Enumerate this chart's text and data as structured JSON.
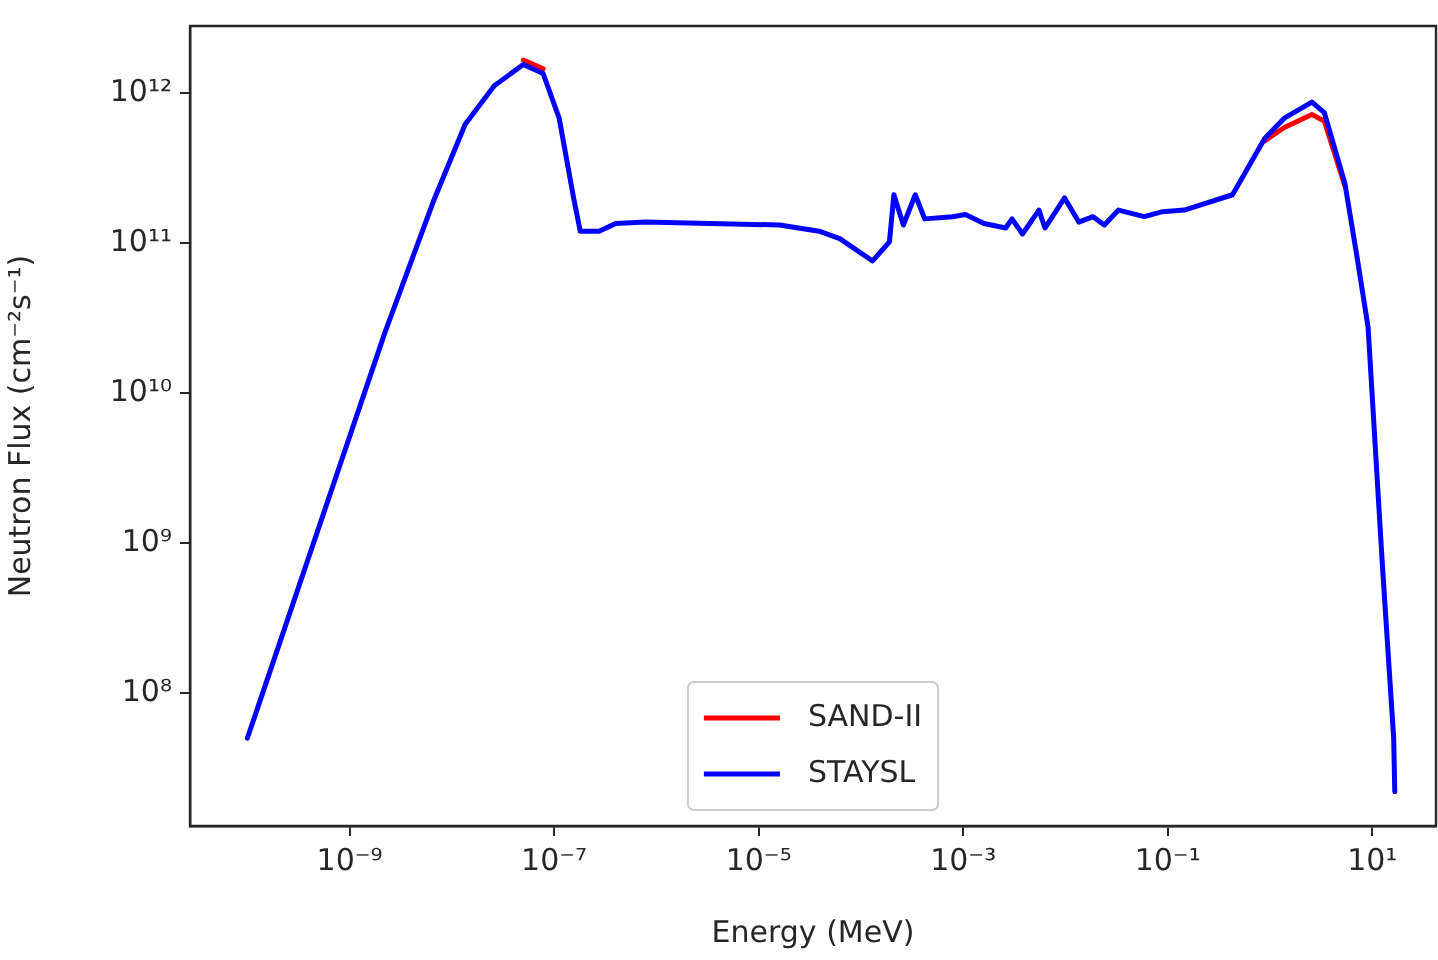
{
  "chart_data": {
    "type": "line",
    "xlabel": "Energy (MeV)",
    "ylabel": "Neutron Flux (cm⁻²s⁻¹)",
    "log": "xy",
    "grid": false,
    "legend": "bottom",
    "marker": "none",
    "line_style": "solid",
    "xlim": [
      2.75e-11,
      42
    ],
    "ylim": [
      13000000.0,
      2800000000000.0
    ],
    "xticks": [
      {
        "value": 1e-09,
        "label": "10⁻⁹"
      },
      {
        "value": 1e-07,
        "label": "10⁻⁷"
      },
      {
        "value": 1e-05,
        "label": "10⁻⁵"
      },
      {
        "value": 0.001,
        "label": "10⁻³"
      },
      {
        "value": 0.1,
        "label": "10⁻¹"
      },
      {
        "value": 10,
        "label": "10¹"
      }
    ],
    "yticks": [
      {
        "value": 100000000.0,
        "label": "10⁸"
      },
      {
        "value": 1000000000.0,
        "label": "10⁹"
      },
      {
        "value": 10000000000.0,
        "label": "10¹⁰"
      },
      {
        "value": 100000000000.0,
        "label": "10¹¹"
      },
      {
        "value": 1000000000000.0,
        "label": "10¹²"
      }
    ],
    "x": [
      1e-10,
      2.2e-09,
      6.6e-09,
      1.35e-08,
      2.6e-08,
      5e-08,
      7.8e-08,
      1.12e-07,
      1.55e-07,
      1.8e-07,
      2.75e-07,
      4e-07,
      7.8e-07,
      1.6e-05,
      3.9e-05,
      6.2e-05,
      0.00013,
      0.00019,
      0.00021,
      0.00026,
      0.00034,
      0.00042,
      0.00079,
      0.00105,
      0.0016,
      0.0026,
      0.003,
      0.0038,
      0.0055,
      0.0063,
      0.0098,
      0.0135,
      0.0186,
      0.024,
      0.033,
      0.059,
      0.089,
      0.145,
      0.43,
      0.89,
      1.38,
      2.57,
      3.4,
      5.4,
      7.2,
      9.1,
      12.6,
      16.2,
      16.6
    ],
    "series": [
      {
        "name": "SAND-II",
        "color": "#ff0000",
        "values": [
          null,
          null,
          null,
          null,
          null,
          1660000000000.0,
          1450000000000.0,
          null,
          null,
          null,
          null,
          null,
          null,
          null,
          null,
          null,
          null,
          null,
          null,
          null,
          null,
          null,
          null,
          null,
          null,
          null,
          null,
          null,
          null,
          null,
          null,
          null,
          null,
          null,
          null,
          null,
          null,
          null,
          null,
          480000000000.0,
          590000000000.0,
          720000000000.0,
          650000000000.0,
          240000000000.0,
          null,
          null,
          null,
          null,
          null
        ]
      },
      {
        "name": "STAYSL",
        "color": "#0000ff",
        "values": [
          50000000.0,
          25000000000.0,
          190000000000.0,
          620000000000.0,
          1120000000000.0,
          1550000000000.0,
          1350000000000.0,
          680000000000.0,
          200000000000.0,
          120000000000.0,
          120000000000.0,
          135000000000.0,
          138000000000.0,
          132000000000.0,
          120000000000.0,
          107000000000.0,
          76000000000.0,
          102000000000.0,
          210000000000.0,
          132000000000.0,
          210000000000.0,
          145000000000.0,
          150000000000.0,
          155000000000.0,
          135000000000.0,
          126000000000.0,
          145000000000.0,
          115000000000.0,
          166000000000.0,
          126000000000.0,
          200000000000.0,
          138000000000.0,
          150000000000.0,
          132000000000.0,
          166000000000.0,
          150000000000.0,
          162000000000.0,
          166000000000.0,
          210000000000.0,
          500000000000.0,
          680000000000.0,
          870000000000.0,
          740000000000.0,
          250000000000.0,
          76000000000.0,
          27500000000.0,
          690000000.0,
          50000000.0,
          22000000.0
        ]
      }
    ]
  }
}
